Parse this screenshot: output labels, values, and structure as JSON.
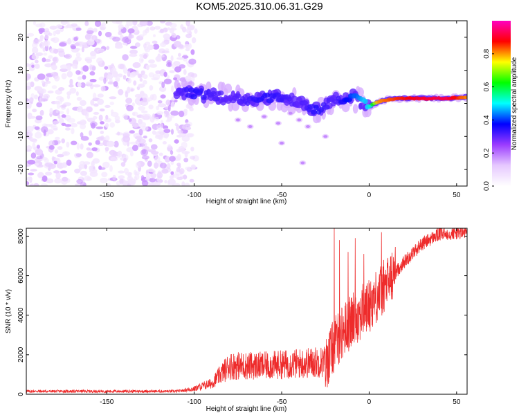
{
  "title": "KOM5.2025.310.06.31.G29",
  "chart_data": [
    {
      "type": "heatmap",
      "name": "spectrogram",
      "title": "KOM5.2025.310.06.31.G29",
      "xlabel": "Height of straight line (km)",
      "ylabel": "Frequency (Hz)",
      "xlim": [
        -196,
        56
      ],
      "ylim": [
        -25,
        25
      ],
      "xticks": [
        -150,
        -100,
        -50,
        0,
        50
      ],
      "yticks": [
        -20,
        -10,
        0,
        10,
        20
      ],
      "colorbar": {
        "label": "Normalized spectral amplitude",
        "range": [
          0,
          1
        ],
        "ticks": [
          "0.0",
          "0.2",
          "0.4",
          "0.6",
          "0.8"
        ],
        "colors": [
          "#ffffff",
          "#e6c8ff",
          "#9b3cff",
          "#0000ff",
          "#00ffff",
          "#00ff00",
          "#ffff00",
          "#ff0000",
          "#ff00c0"
        ]
      },
      "noise_region": {
        "x_range": [
          -196,
          -105
        ],
        "y_range": [
          -25,
          25
        ],
        "level": 0.12
      },
      "signal_track": [
        {
          "x": -110,
          "y": 3.5,
          "amp": 0.3
        },
        {
          "x": -100,
          "y": 3.0,
          "amp": 0.35
        },
        {
          "x": -90,
          "y": 2.5,
          "amp": 0.32
        },
        {
          "x": -80,
          "y": 2.0,
          "amp": 0.3
        },
        {
          "x": -70,
          "y": 1.0,
          "amp": 0.32
        },
        {
          "x": -60,
          "y": 1.5,
          "amp": 0.35
        },
        {
          "x": -50,
          "y": 2.0,
          "amp": 0.33
        },
        {
          "x": -40,
          "y": 0.0,
          "amp": 0.3
        },
        {
          "x": -30,
          "y": -2.0,
          "amp": 0.35
        },
        {
          "x": -20,
          "y": 1.0,
          "amp": 0.3
        },
        {
          "x": -10,
          "y": 2.0,
          "amp": 0.4
        },
        {
          "x": -5,
          "y": 0.5,
          "amp": 0.45
        },
        {
          "x": 0,
          "y": -1.0,
          "amp": 0.5
        },
        {
          "x": 5,
          "y": 0.5,
          "amp": 0.8
        },
        {
          "x": 15,
          "y": 1.5,
          "amp": 0.85
        },
        {
          "x": 30,
          "y": 1.5,
          "amp": 0.9
        },
        {
          "x": 45,
          "y": 1.5,
          "amp": 0.92
        },
        {
          "x": 56,
          "y": 2.0,
          "amp": 0.8
        }
      ]
    },
    {
      "type": "line",
      "name": "snr",
      "xlabel": "Height of straight line (km)",
      "ylabel": "SNR (10 * v/v)",
      "xlim": [
        -196,
        56
      ],
      "ylim": [
        0,
        8400
      ],
      "xticks": [
        -150,
        -100,
        -50,
        0,
        50
      ],
      "yticks": [
        0,
        2000,
        4000,
        6000,
        8000
      ],
      "color": "#ee2b2b",
      "trend": [
        {
          "x": -196,
          "y": 150
        },
        {
          "x": -110,
          "y": 150
        },
        {
          "x": -100,
          "y": 250
        },
        {
          "x": -90,
          "y": 500
        },
        {
          "x": -80,
          "y": 1300
        },
        {
          "x": -60,
          "y": 1300
        },
        {
          "x": -40,
          "y": 1400
        },
        {
          "x": -25,
          "y": 1500
        },
        {
          "x": -20,
          "y": 2500
        },
        {
          "x": -15,
          "y": 3200
        },
        {
          "x": -10,
          "y": 3700
        },
        {
          "x": 0,
          "y": 4500
        },
        {
          "x": 10,
          "y": 5600
        },
        {
          "x": 20,
          "y": 6700
        },
        {
          "x": 30,
          "y": 7600
        },
        {
          "x": 40,
          "y": 8100
        },
        {
          "x": 56,
          "y": 8200
        }
      ],
      "spikes": [
        {
          "x": -20,
          "y": 8400
        },
        {
          "x": -17,
          "y": 7800
        },
        {
          "x": -12,
          "y": 7200
        },
        {
          "x": -8,
          "y": 7900
        },
        {
          "x": -3,
          "y": 7100
        },
        {
          "x": 7,
          "y": 8200
        }
      ]
    }
  ]
}
